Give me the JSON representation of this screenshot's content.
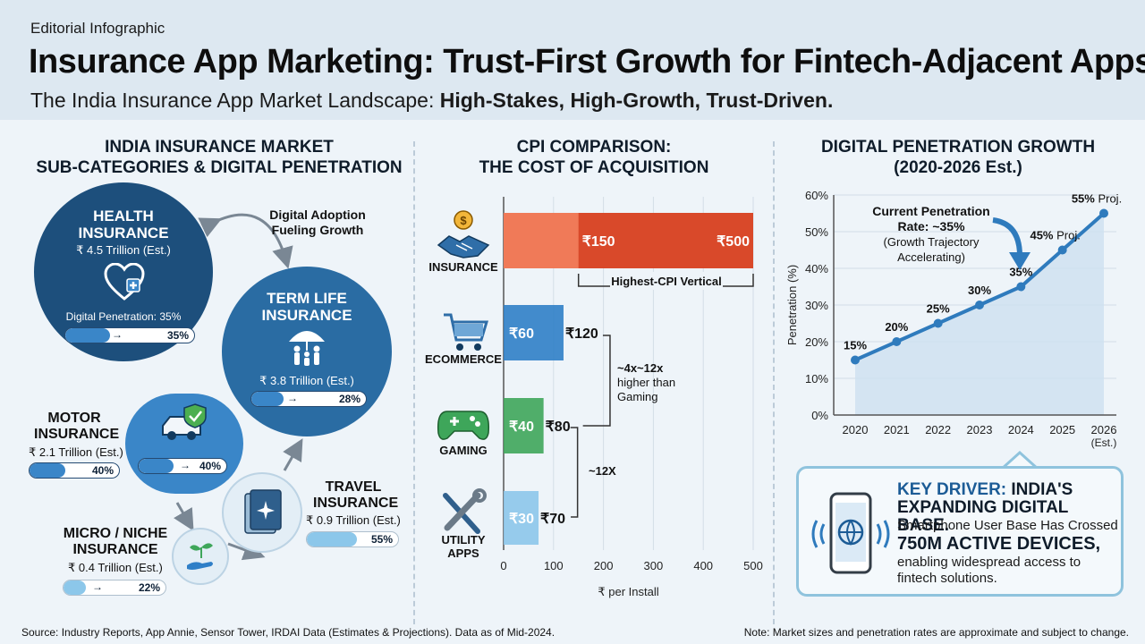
{
  "header": {
    "eyebrow": "Editorial Infographic",
    "title": "Insurance App Marketing: Trust-First Growth for Fintech-Adjacent Apps.",
    "subtitle_plain": "The India Insurance App Market Landscape: ",
    "subtitle_bold": "High-Stakes, High-Growth, Trust-Driven."
  },
  "left_panel": {
    "title_line1": "INDIA INSURANCE MARKET",
    "title_line2": "SUB-CATEGORIES & DIGITAL PENETRATION",
    "adoption_note_line1": "Digital Adoption",
    "adoption_note_line2": "Fueling Growth",
    "health": {
      "name_line1": "HEALTH",
      "name_line2": "INSURANCE",
      "value": "₹ 4.5 Trillion (Est.)",
      "pen_label": "Digital Penetration: 35%",
      "pen": "35%",
      "pen_value": 35
    },
    "term": {
      "name_line1": "TERM LIFE",
      "name_line2": "INSURANCE",
      "value": "₹ 3.8 Trillion (Est.)",
      "pen": "28%",
      "pen_value": 28
    },
    "motor": {
      "name_line1": "MOTOR",
      "name_line2": "INSURANCE",
      "value": "₹ 2.1 Trillion (Est.)",
      "pen": "40%",
      "pen_value": 40
    },
    "travel": {
      "name_line1": "TRAVEL",
      "name_line2": "INSURANCE",
      "value": "₹ 0.9 Trillion (Est.)",
      "pen": "55%",
      "pen_value": 55
    },
    "micro": {
      "name_line1": "MICRO / NICHE",
      "name_line2": "INSURANCE",
      "value": "₹ 0.4 Trillion (Est.)",
      "pen": "22%",
      "pen_value": 22
    },
    "arrow": "→"
  },
  "middle_panel": {
    "title_line1": "CPI COMPARISON:",
    "title_line2": "THE COST OF ACQUISITION"
  },
  "right_panel": {
    "title_line1": "DIGITAL PENETRATION GROWTH",
    "title_line2": "(2020-2026 Est.)",
    "annotation_line1": "Current Penetration",
    "annotation_line2": "Rate: ~35%",
    "annotation_line3": "(Growth Trajectory",
    "annotation_line4": "Accelerating)"
  },
  "key_driver": {
    "label": "KEY DRIVER:",
    "headline_rest": " INDIA'S",
    "headline_line2": "EXPANDING DIGITAL BASE.",
    "line1": "Smartphone User Base Has Crossed",
    "big": "750M ACTIVE DEVICES,",
    "line3": "enabling widespread access to fintech solutions."
  },
  "footer": {
    "source": "Source: Industry Reports, App Annie, Sensor Tower, IRDAI Data (Estimates & Projections). Data as of Mid-2024.",
    "note": "Note: Market sizes and penetration rates are approximate and subject to change."
  },
  "chart_data": [
    {
      "type": "bar",
      "orientation": "horizontal",
      "categories": [
        "INSURANCE",
        "ECOMMERCE",
        "GAMING",
        "UTILITY APPS"
      ],
      "category_lines": [
        [
          "INSURANCE"
        ],
        [
          "ECOMMERCE"
        ],
        [
          "GAMING"
        ],
        [
          "UTILITY",
          "APPS"
        ]
      ],
      "low": [
        150,
        60,
        40,
        30
      ],
      "high": [
        500,
        120,
        80,
        70
      ],
      "low_labels": [
        "₹150",
        "₹60",
        "₹40",
        "₹30"
      ],
      "high_labels": [
        "₹500",
        "₹120",
        "₹80",
        "₹70"
      ],
      "xlabel": "₹ per Install",
      "xlim": [
        0,
        500
      ],
      "xticks": [
        0,
        100,
        200,
        300,
        400,
        500
      ],
      "colors": {
        "INSURANCE": "#d9492a",
        "ECOMMERCE": "#2f7fc7",
        "GAMING": "#3ea65a",
        "UTILITY APPS": "#8cc7ea"
      },
      "annotations": {
        "highest": "Highest-CPI Vertical",
        "ratio_line1": "~4x~12x",
        "ratio_line2": "higher than",
        "ratio_line3": "Gaming",
        "gaming_ratio": "~12X"
      },
      "grid": true
    },
    {
      "type": "line",
      "x": [
        "2020",
        "2021",
        "2022",
        "2023",
        "2024",
        "2025",
        "2026"
      ],
      "xtick_sub": [
        "",
        "",
        "",
        "",
        "",
        "",
        "(Est.)"
      ],
      "y": [
        15,
        20,
        25,
        30,
        35,
        45,
        55
      ],
      "point_labels": [
        "15%",
        "20%",
        "25%",
        "30%",
        "35%",
        "45% Proj.",
        "55% Proj."
      ],
      "ylabel": "Penetration (%)",
      "ylim": [
        0,
        60
      ],
      "yticks": [
        0,
        10,
        20,
        30,
        40,
        50,
        60
      ],
      "ytick_labels": [
        "0%",
        "10%",
        "20%",
        "30%",
        "40%",
        "50%",
        "60%"
      ],
      "color": "#2f7bbd",
      "fill": "#cde0f0",
      "grid": true
    }
  ]
}
